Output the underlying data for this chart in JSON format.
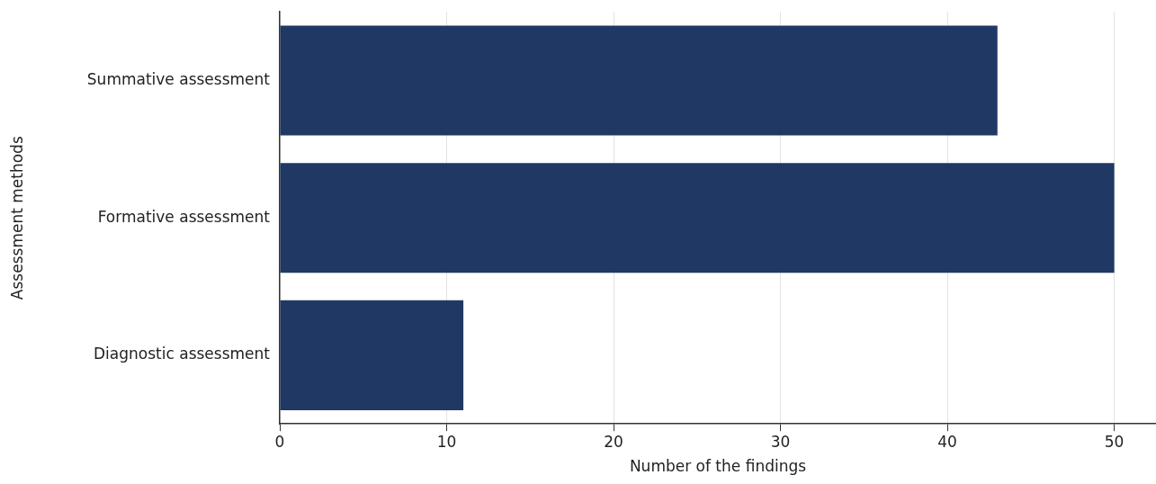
{
  "chart_data": {
    "type": "bar",
    "orientation": "horizontal",
    "xlabel": "Number of the findings",
    "ylabel": "Assessment methods",
    "categories": [
      "Summative assessment",
      "Formative assessment",
      "Diagnostic assessment"
    ],
    "values": [
      43,
      50,
      11
    ],
    "color": "#203864",
    "xlim": [
      0,
      52.5
    ],
    "xticks": [
      0,
      10,
      20,
      30,
      40,
      50
    ],
    "grid": "x"
  }
}
